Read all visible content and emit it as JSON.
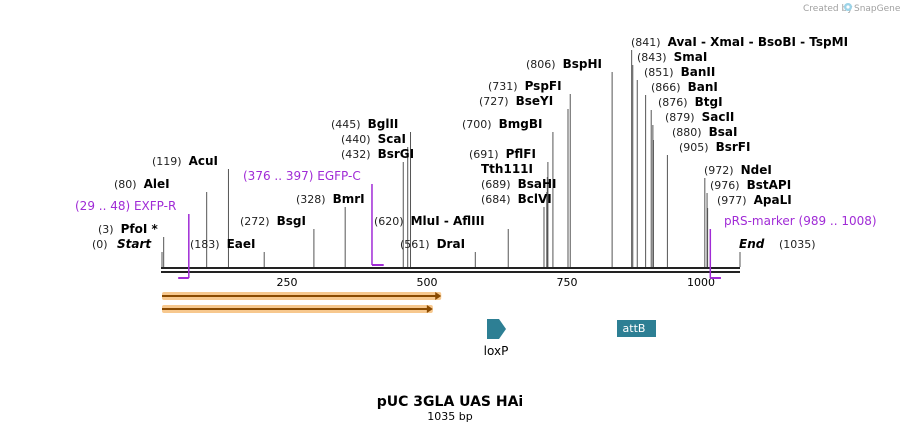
{
  "brand": {
    "created_by": "Created by",
    "name": "SnapGene"
  },
  "map": {
    "title": "pUC 3GLA UAS HAi",
    "subtitle": "1035 bp",
    "length": 1035,
    "ticks": [
      "250",
      "500",
      "750",
      "1000"
    ]
  },
  "ends": [
    {
      "label": "Start",
      "pos": "(0)"
    },
    {
      "label": "End",
      "pos": "(1035)"
    }
  ],
  "sites": [
    {
      "name": "PfoI *",
      "pos": "(3)",
      "bp": 3
    },
    {
      "name": "AleI",
      "pos": "(80)",
      "bp": 80
    },
    {
      "name": "AcuI",
      "pos": "(119)",
      "bp": 119
    },
    {
      "name": "EaeI",
      "pos": "(183)",
      "bp": 183
    },
    {
      "name": "BsgI",
      "pos": "(272)",
      "bp": 272
    },
    {
      "name": "BmrI",
      "pos": "(328)",
      "bp": 328
    },
    {
      "name": "BsrGI",
      "pos": "(432)",
      "bp": 432
    },
    {
      "name": "ScaI",
      "pos": "(440)",
      "bp": 440
    },
    {
      "name": "BglII",
      "pos": "(445)",
      "bp": 445
    },
    {
      "name": "DraI",
      "pos": "(561)",
      "bp": 561
    },
    {
      "name": "MluI  - AflIII",
      "pos": "(620)",
      "bp": 620
    },
    {
      "name": "BclVI",
      "pos": "(684)",
      "bp": 684
    },
    {
      "name": "BsaHI",
      "pos": "(689)",
      "bp": 689
    },
    {
      "name": "Tth111I",
      "pos": "",
      "bp": 690
    },
    {
      "name": "PflFI",
      "pos": "(691)",
      "bp": 691
    },
    {
      "name": "BmgBI",
      "pos": "(700)",
      "bp": 700
    },
    {
      "name": "BseYI",
      "pos": "(727)",
      "bp": 727
    },
    {
      "name": "PspFI",
      "pos": "(731)",
      "bp": 731
    },
    {
      "name": "BspHI",
      "pos": "(806)",
      "bp": 806
    },
    {
      "name": "AvaI  - XmaI  - BsoBI  - TspMI",
      "pos": "(841)",
      "bp": 841
    },
    {
      "name": "SmaI",
      "pos": "(843)",
      "bp": 843
    },
    {
      "name": "BanII",
      "pos": "(851)",
      "bp": 851
    },
    {
      "name": "BanI",
      "pos": "(866)",
      "bp": 866
    },
    {
      "name": "BtgI",
      "pos": "(876)",
      "bp": 876
    },
    {
      "name": "SacII",
      "pos": "(879)",
      "bp": 879
    },
    {
      "name": "BsaI",
      "pos": "(880)",
      "bp": 880
    },
    {
      "name": "BsrFI",
      "pos": "(905)",
      "bp": 905
    },
    {
      "name": "NdeI",
      "pos": "(972)",
      "bp": 972
    },
    {
      "name": "BstAPI",
      "pos": "(976)",
      "bp": 976
    },
    {
      "name": "ApaLI",
      "pos": "(977)",
      "bp": 977
    }
  ],
  "primers": [
    {
      "name": "EXFP-R",
      "range": "(29 .. 48)",
      "start": 29,
      "end": 48
    },
    {
      "name": "EGFP-C",
      "range": "(376 .. 397)",
      "start": 376,
      "end": 397
    },
    {
      "name": "pRS-marker",
      "range": "(989 .. 1008)",
      "start": 989,
      "end": 1008
    }
  ],
  "features": [
    {
      "name": "loxP",
      "start": 620,
      "end": 653
    },
    {
      "name": "attB",
      "start": 866,
      "end": 936
    }
  ],
  "orfs": [
    {
      "start": 0,
      "end": 500
    },
    {
      "start": 0,
      "end": 485
    }
  ],
  "colors": {
    "backbone": "#222222",
    "primer": "#a02bd6",
    "orf_fill": "#f7c88e",
    "orf_line": "#8a4a00",
    "feature": "#2d7f94"
  }
}
